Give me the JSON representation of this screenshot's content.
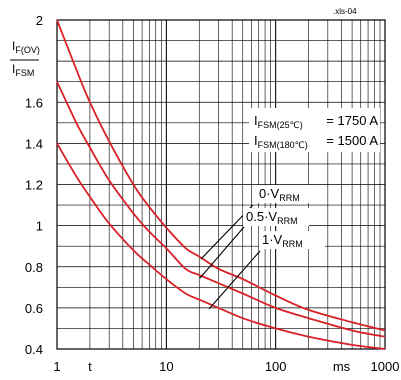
{
  "file_id": ".xls-04",
  "chart_data": {
    "type": "line",
    "x_scale": "log",
    "xlim": [
      1,
      1000
    ],
    "ylim": [
      0.4,
      2.0
    ],
    "grid": true,
    "ylabel": {
      "num_main": "I",
      "num_sub": "F(OV)",
      "den_main": "I",
      "den_sub": "FSM"
    },
    "x_tick_labels": [
      {
        "x": 1,
        "label": "1"
      },
      {
        "x": 2,
        "label": "t"
      },
      {
        "x": 10,
        "label": "10"
      },
      {
        "x": 100,
        "label": "100"
      },
      {
        "x": 400,
        "label": "ms"
      },
      {
        "x": 1000,
        "label": "1000"
      }
    ],
    "y_tick_labels": [
      {
        "y": 2.0,
        "label": "2"
      },
      {
        "y": 1.6,
        "label": "1.6"
      },
      {
        "y": 1.4,
        "label": "1.4"
      },
      {
        "y": 1.2,
        "label": "1.2"
      },
      {
        "y": 1.0,
        "label": "1"
      },
      {
        "y": 0.8,
        "label": "0.8"
      },
      {
        "y": 0.6,
        "label": "0.6"
      },
      {
        "y": 0.4,
        "label": "0.4"
      }
    ],
    "info_box": [
      {
        "main": "I",
        "sub": "FSM(25℃)",
        "value": "= 1750 A"
      },
      {
        "main": "I",
        "sub": "FSM(180℃)",
        "value": "= 1500 A"
      }
    ],
    "series": [
      {
        "name": "0·V_RRM",
        "label_main": "0·V",
        "label_sub": "RRM",
        "color": "#d92128",
        "x": [
          1,
          1.5,
          2,
          3,
          5,
          7,
          10,
          15,
          20,
          30,
          50,
          100,
          200,
          500,
          1000
        ],
        "y": [
          2.0,
          1.76,
          1.6,
          1.41,
          1.2,
          1.09,
          0.99,
          0.89,
          0.85,
          0.79,
          0.74,
          0.66,
          0.59,
          0.53,
          0.49
        ]
      },
      {
        "name": "0.5·V_RRM",
        "label_main": "0.5·V",
        "label_sub": "RRM",
        "color": "#d92128",
        "x": [
          1,
          1.5,
          2,
          3,
          5,
          7,
          10,
          15,
          20,
          30,
          50,
          100,
          200,
          500,
          1000
        ],
        "y": [
          1.7,
          1.5,
          1.38,
          1.22,
          1.06,
          0.97,
          0.89,
          0.79,
          0.76,
          0.72,
          0.67,
          0.6,
          0.55,
          0.49,
          0.46
        ]
      },
      {
        "name": "1·V_RRM",
        "label_main": "1·V",
        "label_sub": "RRM",
        "color": "#d92128",
        "x": [
          1,
          1.5,
          2,
          3,
          5,
          7,
          10,
          15,
          20,
          30,
          50,
          100,
          200,
          500,
          1000
        ],
        "y": [
          1.4,
          1.24,
          1.14,
          1.01,
          0.88,
          0.81,
          0.74,
          0.67,
          0.64,
          0.6,
          0.55,
          0.5,
          0.46,
          0.42,
          0.4
        ]
      }
    ]
  }
}
